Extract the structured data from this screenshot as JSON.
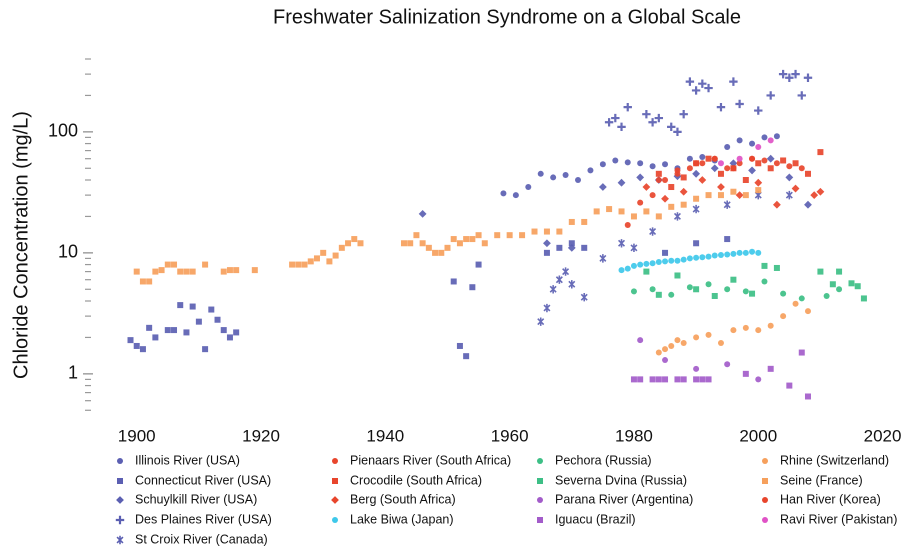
{
  "chart_data": {
    "type": "scatter",
    "title": "Freshwater Salinization Syndrome on a Global Scale",
    "y_label": "Chloride Concentration (mg/L)",
    "yscale": "log",
    "xlim": [
      1892,
      2022
    ],
    "xticks": [
      1900,
      1920,
      1940,
      1960,
      1980,
      2000,
      2020
    ],
    "ylim": [
      0.4,
      400
    ],
    "yticks": [
      1,
      10,
      100
    ],
    "minor_yticks": [
      0.5,
      0.6,
      0.7,
      0.8,
      0.9,
      2,
      3,
      4,
      5,
      6,
      7,
      8,
      9,
      20,
      30,
      40,
      50,
      60,
      70,
      80,
      90,
      200,
      300,
      400
    ],
    "grid": false,
    "legend": "bottom",
    "series": [
      {
        "name": "Illinois River (USA)",
        "color": "#5b5fb2",
        "marker": "circle",
        "x": [
          1959,
          1961,
          1963,
          1965,
          1967,
          1969,
          1971,
          1973,
          1975,
          1977,
          1979,
          1981,
          1983,
          1985,
          1987,
          1989,
          1991,
          1993,
          1995,
          1997,
          1999,
          2001,
          2003
        ],
        "values": [
          31,
          30,
          35,
          45,
          42,
          44,
          40,
          48,
          54,
          58,
          56,
          55,
          52,
          54,
          50,
          60,
          62,
          58,
          75,
          85,
          80,
          90,
          92
        ]
      },
      {
        "name": "Connecticut River (USA)",
        "color": "#5b5fb2",
        "marker": "square",
        "x": [
          1899,
          1900,
          1901,
          1902,
          1903,
          1905,
          1906,
          1907,
          1908,
          1909,
          1910,
          1911,
          1912,
          1913,
          1914,
          1915,
          1916,
          1951,
          1952,
          1953,
          1954,
          1955,
          1966,
          1968,
          1970,
          1972,
          1985,
          1990,
          1995
        ],
        "values": [
          1.9,
          1.7,
          1.6,
          2.4,
          2.0,
          2.3,
          2.3,
          3.7,
          2.2,
          3.6,
          2.7,
          1.6,
          3.4,
          2.8,
          2.3,
          2.0,
          2.2,
          5.8,
          1.7,
          1.4,
          5.2,
          8.0,
          10,
          11,
          12,
          11,
          10,
          12,
          13
        ]
      },
      {
        "name": "Schuylkill River (USA)",
        "color": "#5b5fb2",
        "marker": "diamond",
        "x": [
          1946,
          1966,
          1970,
          1975,
          1978,
          1981,
          1984,
          1987,
          1990,
          1993,
          1996,
          1999,
          2002,
          2005,
          2008
        ],
        "values": [
          21,
          12,
          11,
          35,
          38,
          42,
          40,
          43,
          45,
          50,
          55,
          48,
          60,
          42,
          25
        ]
      },
      {
        "name": "Des Plaines River (USA)",
        "color": "#5b5fb2",
        "marker": "plus",
        "x": [
          1976,
          1977,
          1978,
          1979,
          1982,
          1983,
          1984,
          1986,
          1987,
          1988,
          1989,
          1990,
          1991,
          1992,
          1994,
          1996,
          1997,
          2000,
          2002,
          2004,
          2005,
          2006,
          2007,
          2008
        ],
        "values": [
          120,
          130,
          110,
          160,
          140,
          120,
          130,
          110,
          100,
          140,
          260,
          220,
          250,
          230,
          160,
          260,
          170,
          150,
          200,
          300,
          280,
          300,
          200,
          280
        ]
      },
      {
        "name": "St Croix River (Canada)",
        "color": "#5b5fb2",
        "marker": "asterisk",
        "x": [
          1965,
          1966,
          1967,
          1968,
          1969,
          1970,
          1972,
          1975,
          1978,
          1980,
          1983,
          1987,
          1990,
          1995,
          2000,
          2005
        ],
        "values": [
          2.7,
          3.5,
          5,
          6,
          7,
          5.5,
          4.3,
          9,
          12,
          11,
          15,
          20,
          23,
          25,
          30,
          30
        ]
      },
      {
        "name": "Pienaars River (South Africa)",
        "color": "#e8452c",
        "marker": "circle",
        "x": [
          1979,
          1981,
          1983,
          1985,
          1987,
          1989,
          1991,
          1993,
          1995,
          1997,
          1999,
          2001,
          2003,
          2005,
          2007
        ],
        "values": [
          17,
          26,
          30,
          40,
          45,
          50,
          55,
          60,
          50,
          55,
          60,
          58,
          55,
          52,
          50
        ]
      },
      {
        "name": "Crocodile (South Africa)",
        "color": "#e8452c",
        "marker": "square",
        "x": [
          1984,
          1986,
          1988,
          1990,
          1992,
          1994,
          1996,
          1998,
          2000,
          2002,
          2004,
          2006,
          2008,
          2010
        ],
        "values": [
          45,
          35,
          42,
          55,
          60,
          45,
          50,
          40,
          55,
          50,
          58,
          55,
          45,
          68
        ]
      },
      {
        "name": "Berg (South Africa)",
        "color": "#e8452c",
        "marker": "diamond",
        "x": [
          1982,
          1985,
          1988,
          1991,
          1994,
          1997,
          2000,
          2003,
          2006,
          2009,
          2010
        ],
        "values": [
          35,
          28,
          32,
          40,
          35,
          30,
          38,
          25,
          34,
          30,
          32
        ]
      },
      {
        "name": "Lake Biwa (Japan)",
        "color": "#3ec8ea",
        "marker": "circle",
        "x": [
          1978,
          1979,
          1980,
          1981,
          1982,
          1983,
          1984,
          1985,
          1986,
          1987,
          1988,
          1989,
          1990,
          1991,
          1992,
          1993,
          1994,
          1995,
          1996,
          1997,
          1998,
          1999,
          2000
        ],
        "values": [
          7.2,
          7.4,
          7.8,
          8,
          8.1,
          8.2,
          8.4,
          8.5,
          8.6,
          8.6,
          8.8,
          9,
          9.1,
          9.2,
          9.3,
          9.5,
          9.6,
          9.7,
          9.8,
          10,
          10,
          10.2,
          10
        ]
      },
      {
        "name": "Pechora (Russia)",
        "color": "#3dbf86",
        "marker": "circle",
        "x": [
          1980,
          1983,
          1986,
          1989,
          1992,
          1995,
          1998,
          2001,
          2004,
          2007,
          2011,
          2013
        ],
        "values": [
          4.8,
          5,
          4.5,
          5.2,
          5.5,
          5,
          4.8,
          5.8,
          4.6,
          4.2,
          4.4,
          5
        ]
      },
      {
        "name": "Severna Dvina (Russia)",
        "color": "#3dbf86",
        "marker": "square",
        "x": [
          1982,
          1984,
          1987,
          1990,
          1993,
          1996,
          1999,
          2001,
          2003,
          2010,
          2012,
          2013,
          2015,
          2016,
          2017
        ],
        "values": [
          7,
          4.5,
          6.5,
          5,
          4.4,
          6,
          4.6,
          7.8,
          7.5,
          7,
          5.5,
          7,
          5.6,
          5.3,
          4.2
        ]
      },
      {
        "name": "Parana River (Argentina)",
        "color": "#a35cca",
        "marker": "circle",
        "x": [
          1981,
          1985,
          1990,
          1995,
          2000
        ],
        "values": [
          1.9,
          1.3,
          1.1,
          1.2,
          0.9
        ]
      },
      {
        "name": "Iguacu (Brazil)",
        "color": "#a35cca",
        "marker": "square",
        "x": [
          1980,
          1981,
          1983,
          1984,
          1985,
          1987,
          1988,
          1990,
          1991,
          1992,
          1998,
          2002,
          2005,
          2007,
          2008
        ],
        "values": [
          0.9,
          0.9,
          0.9,
          0.9,
          0.9,
          0.9,
          0.9,
          0.9,
          0.9,
          0.9,
          1.0,
          1.1,
          0.8,
          1.5,
          0.65
        ]
      },
      {
        "name": "Rhine (Switzerland)",
        "color": "#f6a05c",
        "marker": "circle",
        "x": [
          1984,
          1985,
          1986,
          1987,
          1988,
          1990,
          1992,
          1994,
          1996,
          1998,
          2000,
          2002,
          2004,
          2006,
          2008
        ],
        "values": [
          1.5,
          1.6,
          1.7,
          1.9,
          1.8,
          2,
          2.1,
          1.8,
          2.3,
          2.4,
          2.3,
          2.5,
          3,
          3.8,
          3.3
        ]
      },
      {
        "name": "Seine (France)",
        "color": "#f6a05c",
        "marker": "square",
        "x": [
          1900,
          1901,
          1902,
          1903,
          1904,
          1905,
          1906,
          1907,
          1908,
          1909,
          1911,
          1914,
          1915,
          1916,
          1919,
          1925,
          1926,
          1927,
          1928,
          1929,
          1930,
          1931,
          1932,
          1933,
          1934,
          1935,
          1936,
          1943,
          1944,
          1945,
          1946,
          1947,
          1948,
          1949,
          1950,
          1951,
          1952,
          1953,
          1954,
          1955,
          1956,
          1958,
          1960,
          1962,
          1964,
          1966,
          1968,
          1970,
          1972,
          1974,
          1976,
          1978,
          1980,
          1982,
          1984,
          1986,
          1988,
          1990,
          1992,
          1994,
          1996,
          1998,
          2000
        ],
        "values": [
          7,
          5.8,
          5.8,
          7,
          7.2,
          8,
          8,
          7,
          7,
          7,
          8,
          7,
          7.2,
          7.2,
          7.2,
          8,
          8,
          8,
          8.5,
          9,
          10,
          8.5,
          9.5,
          11,
          12,
          13,
          12,
          12,
          12,
          14,
          12,
          11,
          10,
          10,
          11,
          13,
          12,
          13,
          13,
          14,
          12,
          14,
          14,
          14,
          15,
          15,
          15,
          18,
          18,
          22,
          23,
          22,
          20,
          22,
          20,
          24,
          25,
          28,
          30,
          30,
          32,
          30,
          33
        ]
      },
      {
        "name": "Han River (Korea)",
        "color": "#e8452c",
        "marker": "circle",
        "x": [
          1984,
          1987,
          1990,
          1993,
          1996,
          1999
        ],
        "values": [
          40,
          48,
          55,
          60,
          50,
          60
        ]
      },
      {
        "name": "Ravi River (Pakistan)",
        "color": "#e052c6",
        "marker": "circle",
        "x": [
          1994,
          1997,
          2000,
          2002
        ],
        "values": [
          55,
          60,
          75,
          85
        ]
      }
    ]
  }
}
